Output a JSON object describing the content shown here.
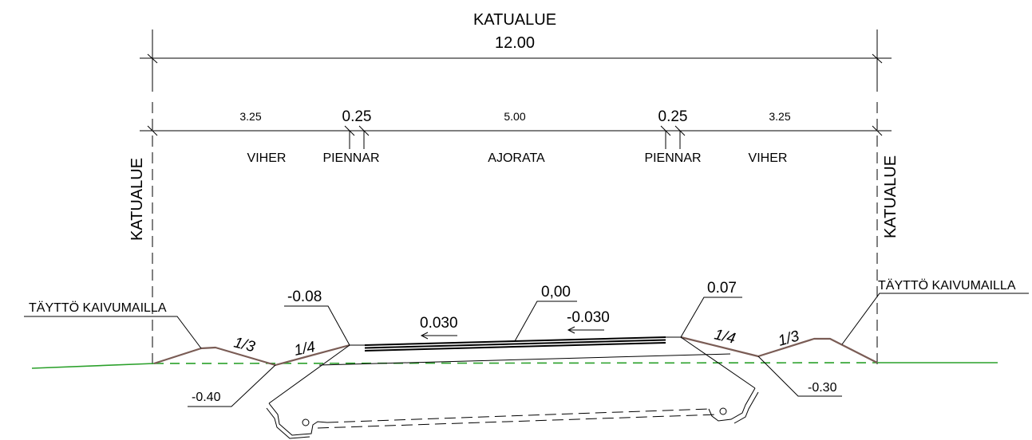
{
  "title": {
    "label": "KATUALUE",
    "width": "12.00"
  },
  "segments": [
    {
      "dim": "3.25",
      "name": "VIHER"
    },
    {
      "dim": "0.25",
      "name": "PIENNAR"
    },
    {
      "dim": "5.00",
      "name": "AJORATA"
    },
    {
      "dim": "0.25",
      "name": "PIENNAR"
    },
    {
      "dim": "3.25",
      "name": "VIHER"
    }
  ],
  "side_labels": {
    "left": "KATUALUE",
    "right": "KATUALUE"
  },
  "fill_labels": {
    "left": "TÄYTTÖ KAIVUMAILLA",
    "right": "TÄYTTÖ KAIVUMAILLA"
  },
  "elevations": {
    "left_edge": "-0.08",
    "center": "0,00",
    "right_edge": "0.07",
    "left_ditch": "-0.40",
    "right_ditch": "-0.30"
  },
  "crossfall": {
    "left": "0.030",
    "right": "-0.030"
  },
  "slopes": {
    "left_outer": "1/3",
    "left_inner": "1/4",
    "right_inner": "1/4",
    "right_outer": "1/3"
  },
  "colors": {
    "ground": "#2aa02a",
    "slope": "#7a5c55"
  }
}
